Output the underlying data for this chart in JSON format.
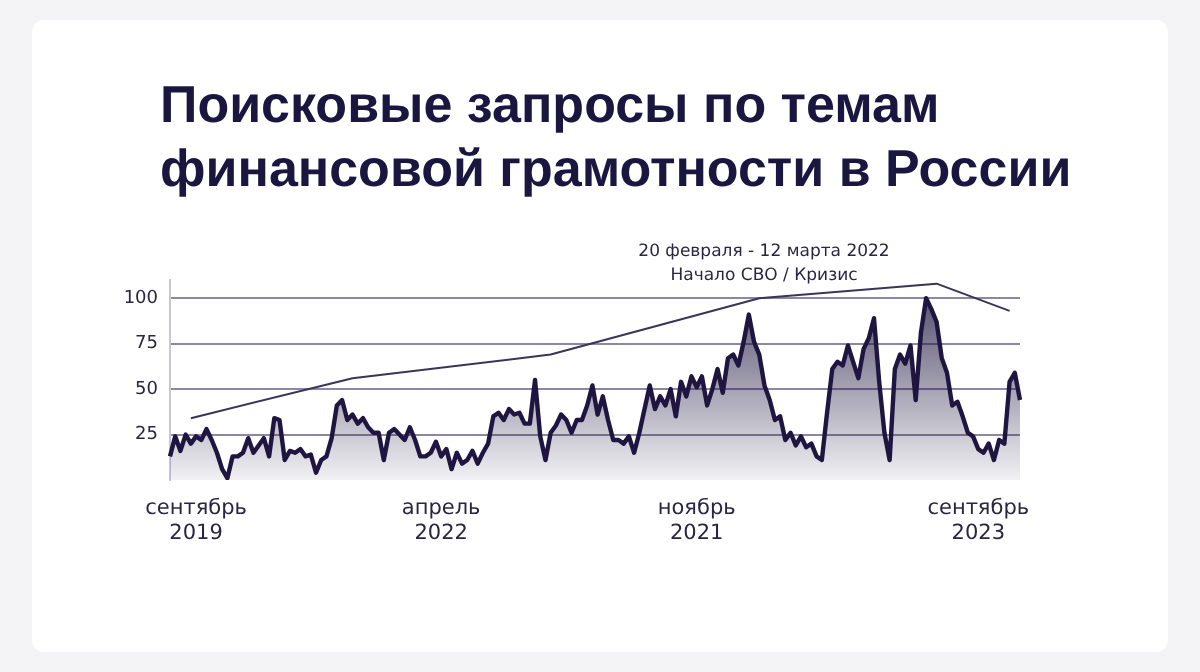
{
  "chart_data": {
    "type": "area",
    "title": "Поисковые запросы по темам финансовой грамотности в России",
    "annotations": [
      "20 февраля - 12 марта 2022",
      "Начало СВО / Кризис"
    ],
    "categories": [
      null,
      null,
      null,
      null,
      null,
      "сентябрь 2019",
      null,
      null,
      null,
      null,
      null,
      null,
      null,
      null,
      null,
      null,
      null,
      null,
      null,
      null,
      null,
      null,
      null,
      null,
      null,
      null,
      null,
      null,
      null,
      null,
      null,
      null,
      null,
      null,
      null,
      null,
      null,
      null,
      null,
      null,
      null,
      null,
      null,
      null,
      null,
      null,
      null,
      null,
      null,
      null,
      null,
      null,
      "апрель 2022",
      null,
      null,
      null,
      null,
      null,
      null,
      null,
      null,
      null,
      null,
      null,
      null,
      null,
      null,
      null,
      null,
      null,
      null,
      null,
      null,
      null,
      null,
      null,
      null,
      null,
      null,
      null,
      null,
      null,
      null,
      null,
      null,
      null,
      null,
      null,
      null,
      null,
      null,
      null,
      null,
      null,
      null,
      null,
      null,
      null,
      null,
      null,
      null,
      "ноябрь 2021",
      null,
      null,
      null,
      null,
      null,
      null,
      null,
      null,
      null,
      null,
      null,
      null,
      null,
      null,
      null,
      null,
      null,
      null,
      null,
      null,
      null,
      null,
      null,
      null,
      null,
      null,
      null,
      null,
      null,
      null,
      null,
      null,
      null,
      null,
      null,
      null,
      null,
      null,
      null,
      null,
      null,
      null,
      null,
      null,
      null,
      null,
      null,
      null,
      null,
      null,
      null,
      null,
      null,
      "сентябрь 2023",
      null,
      null,
      null,
      null,
      null,
      null,
      null,
      null
    ],
    "series": [
      {
        "color": "#1e1640",
        "values": [
          13,
          24,
          16,
          25,
          20,
          24,
          22,
          28,
          22,
          15,
          6,
          1,
          13,
          13,
          15,
          23,
          15,
          19,
          23,
          13,
          34,
          33,
          11,
          16,
          15,
          17,
          13,
          14,
          4,
          11,
          13,
          23,
          41,
          44,
          33,
          36,
          31,
          34,
          29,
          26,
          26,
          11,
          26,
          28,
          25,
          22,
          29,
          22,
          13,
          13,
          15,
          21,
          13,
          17,
          6,
          15,
          9,
          11,
          16,
          9,
          15,
          20,
          35,
          37,
          33,
          39,
          36,
          37,
          31,
          31,
          55,
          24,
          11,
          26,
          30,
          36,
          33,
          26,
          33,
          33,
          41,
          52,
          36,
          46,
          33,
          22,
          22,
          20,
          24,
          15,
          26,
          39,
          52,
          39,
          46,
          41,
          50,
          35,
          54,
          46,
          57,
          51,
          57,
          41,
          50,
          61,
          48,
          67,
          69,
          63,
          76,
          91,
          76,
          69,
          52,
          44,
          33,
          35,
          22,
          26,
          19,
          24,
          18,
          20,
          13,
          11,
          37,
          61,
          65,
          63,
          74,
          65,
          56,
          72,
          78,
          89,
          54,
          26,
          11,
          61,
          69,
          64,
          74,
          44,
          81,
          100,
          94,
          87,
          67,
          59,
          41,
          43,
          35,
          26,
          24,
          17,
          15,
          20,
          11,
          22,
          20,
          54,
          59,
          44
        ]
      },
      {
        "type": "line",
        "color": "#3a3458",
        "values": [
          null,
          null,
          null,
          null,
          34,
          null,
          null,
          null,
          null,
          null,
          null,
          null,
          null,
          null,
          null,
          null,
          null,
          null,
          null,
          null,
          null,
          null,
          null,
          null,
          null,
          null,
          null,
          null,
          null,
          null,
          null,
          null,
          null,
          null,
          null,
          56,
          null,
          null,
          null,
          null,
          null,
          null,
          null,
          null,
          null,
          null,
          null,
          null,
          null,
          null,
          null,
          null,
          null,
          null,
          null,
          null,
          null,
          null,
          null,
          null,
          null,
          null,
          null,
          null,
          null,
          null,
          null,
          null,
          null,
          null,
          null,
          null,
          null,
          69,
          null,
          null,
          null,
          null,
          null,
          null,
          null,
          null,
          null,
          null,
          null,
          null,
          null,
          null,
          null,
          null,
          null,
          null,
          null,
          null,
          null,
          null,
          null,
          null,
          null,
          null,
          null,
          null,
          null,
          null,
          null,
          null,
          null,
          null,
          null,
          null,
          null,
          null,
          null,
          100,
          null,
          null,
          null,
          null,
          null,
          null,
          null,
          null,
          null,
          null,
          null,
          null,
          null,
          null,
          null,
          null,
          null,
          null,
          null,
          null,
          null,
          null,
          null,
          null,
          null,
          null,
          null,
          null,
          null,
          null,
          null,
          null,
          null,
          108,
          null,
          null,
          null,
          null,
          null,
          null,
          null,
          null,
          null,
          null,
          null,
          null,
          null,
          93,
          null,
          null
        ]
      }
    ],
    "ylim": [
      0,
      110
    ],
    "yticks": [
      25,
      50,
      75,
      100
    ],
    "grid": "y",
    "legend": false,
    "marker": "none"
  }
}
